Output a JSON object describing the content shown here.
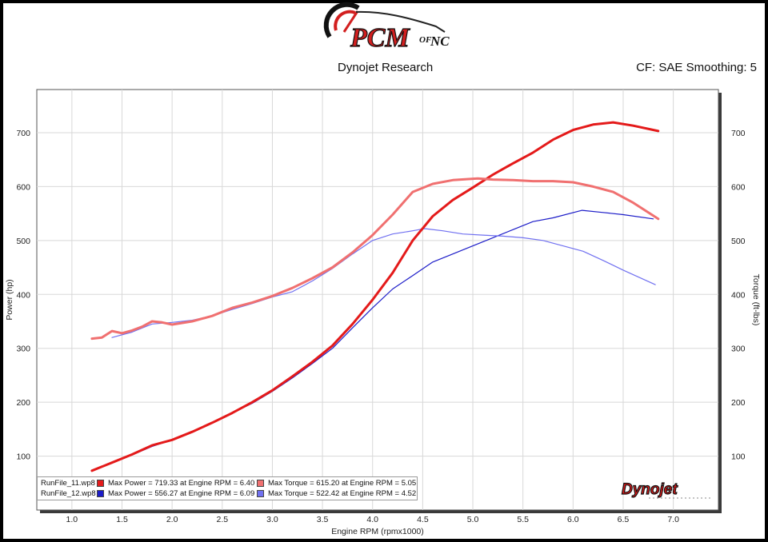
{
  "header": {
    "logo_text": "PCM of NC",
    "title": "Dynojet Research",
    "cf_text": "CF: SAE Smoothing: 5"
  },
  "brand_logo_text": "Dynojet",
  "legend": {
    "rows": [
      {
        "file": "RunFile_11.wp8",
        "power_text": "Max Power = 719.33 at Engine RPM = 6.40",
        "torque_text": "Max Torque = 615.20 at Engine RPM = 5.05",
        "power_color": "#e41a1a",
        "torque_color": "#f07070"
      },
      {
        "file": "RunFile_12.wp8",
        "power_text": "Max Power = 556.27 at Engine RPM = 6.09",
        "torque_text": "Max Torque = 522.42 at Engine RPM = 4.52",
        "power_color": "#1c1cc8",
        "torque_color": "#7070f0"
      }
    ]
  },
  "chart_data": {
    "type": "line",
    "xlabel": "Engine RPM (rpmx1000)",
    "ylabel": "Power (hp)",
    "y2label": "Torque (ft-lbs)",
    "xlim": [
      0.65,
      7.45
    ],
    "ylim": [
      0,
      780
    ],
    "xticks": [
      "1.0",
      "1.5",
      "2.0",
      "2.5",
      "3.0",
      "3.5",
      "4.0",
      "4.5",
      "5.0",
      "5.5",
      "6.0",
      "6.5",
      "7.0"
    ],
    "yticks": [
      "100",
      "200",
      "300",
      "400",
      "500",
      "600",
      "700"
    ],
    "grid": true,
    "series": [
      {
        "name": "RunFile_11.wp8",
        "measure": "Power",
        "color": "#e41a1a",
        "width": 3,
        "x": [
          1.2,
          1.4,
          1.6,
          1.8,
          2.0,
          2.2,
          2.4,
          2.6,
          2.8,
          3.0,
          3.2,
          3.4,
          3.6,
          3.8,
          4.0,
          4.2,
          4.4,
          4.6,
          4.8,
          5.0,
          5.2,
          5.4,
          5.6,
          5.8,
          6.0,
          6.2,
          6.4,
          6.6,
          6.85
        ],
        "y": [
          73,
          88,
          103,
          120,
          130,
          145,
          162,
          180,
          200,
          222,
          248,
          275,
          305,
          345,
          390,
          440,
          500,
          545,
          575,
          598,
          622,
          643,
          663,
          687,
          705,
          715,
          719,
          713,
          703
        ]
      },
      {
        "name": "RunFile_11.wp8",
        "measure": "Torque",
        "color": "#f07070",
        "width": 3,
        "x": [
          1.2,
          1.3,
          1.4,
          1.5,
          1.6,
          1.7,
          1.8,
          1.9,
          2.0,
          2.1,
          2.2,
          2.4,
          2.6,
          2.8,
          3.0,
          3.2,
          3.4,
          3.6,
          3.8,
          4.0,
          4.2,
          4.4,
          4.6,
          4.8,
          5.05,
          5.2,
          5.4,
          5.6,
          5.8,
          6.0,
          6.2,
          6.4,
          6.6,
          6.85
        ],
        "y": [
          318,
          320,
          332,
          328,
          333,
          340,
          350,
          348,
          344,
          347,
          350,
          360,
          375,
          385,
          397,
          412,
          430,
          450,
          478,
          510,
          548,
          590,
          605,
          612,
          615,
          613,
          612,
          610,
          610,
          608,
          600,
          590,
          570,
          540
        ]
      },
      {
        "name": "RunFile_12.wp8",
        "measure": "Power",
        "color": "#1c1cc8",
        "width": 1.2,
        "x": [
          1.2,
          1.4,
          1.6,
          1.8,
          2.0,
          2.2,
          2.4,
          2.6,
          2.8,
          3.0,
          3.2,
          3.4,
          3.6,
          3.8,
          4.0,
          4.2,
          4.4,
          4.6,
          4.8,
          5.0,
          5.2,
          5.4,
          5.6,
          5.8,
          6.09,
          6.3,
          6.5,
          6.8
        ],
        "y": [
          73,
          88,
          102,
          118,
          130,
          144,
          162,
          180,
          198,
          220,
          245,
          272,
          300,
          338,
          375,
          410,
          435,
          460,
          475,
          490,
          505,
          520,
          535,
          542,
          556,
          552,
          548,
          540
        ]
      },
      {
        "name": "RunFile_12.wp8",
        "measure": "Torque",
        "color": "#7070f0",
        "width": 1.2,
        "x": [
          1.4,
          1.6,
          1.8,
          2.0,
          2.2,
          2.4,
          2.6,
          2.8,
          3.0,
          3.2,
          3.4,
          3.6,
          3.8,
          4.0,
          4.2,
          4.4,
          4.52,
          4.7,
          4.9,
          5.1,
          5.3,
          5.5,
          5.7,
          5.9,
          6.1,
          6.3,
          6.5,
          6.82
        ],
        "y": [
          320,
          330,
          345,
          348,
          352,
          360,
          372,
          383,
          395,
          405,
          425,
          448,
          475,
          500,
          512,
          518,
          522,
          518,
          512,
          510,
          508,
          505,
          500,
          490,
          480,
          463,
          445,
          418
        ]
      }
    ]
  }
}
